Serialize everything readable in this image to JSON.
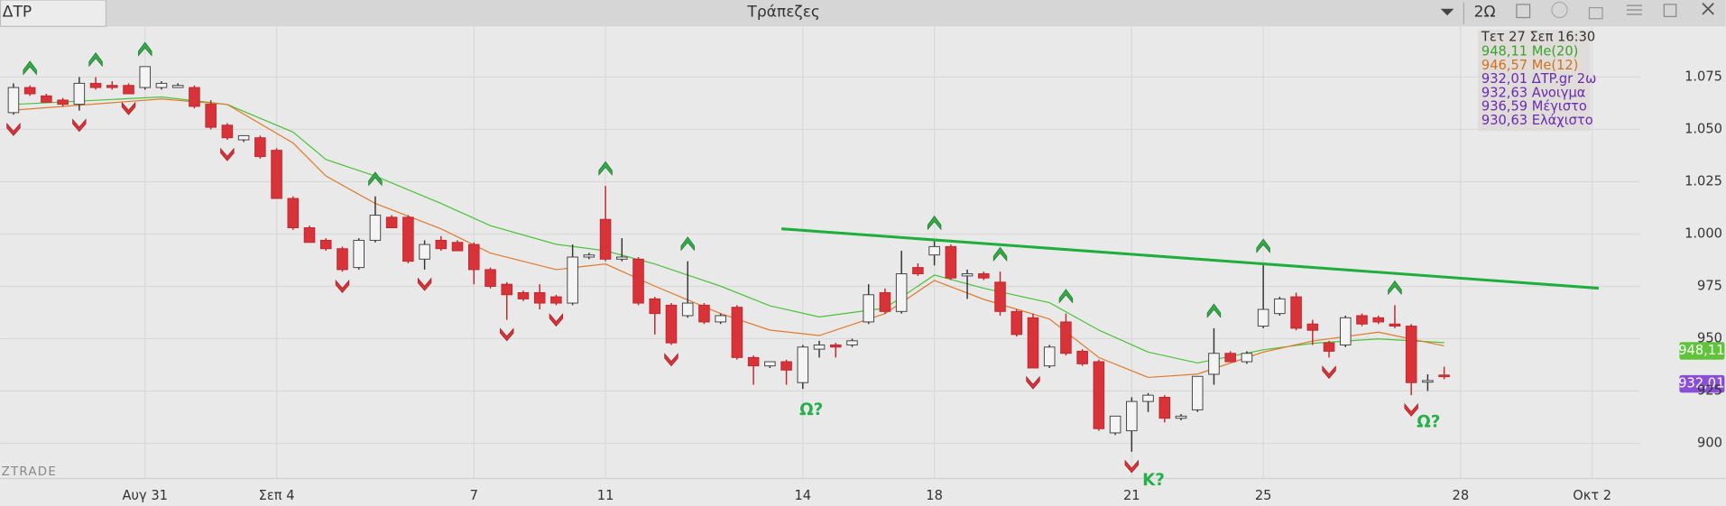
{
  "toolbar": {
    "symbol": "ΔΤΡ",
    "title": "Τράπεζες",
    "interval": "2Ω"
  },
  "watermark": "ZTRADE",
  "info_box": {
    "date": "Τετ 27 Σεπ 16:30",
    "ma20": "948,11 Me(20)",
    "ma12": "946,57 Me(12)",
    "last": "932,01 ΔΤP.gr 2ω",
    "open": "932,63 Ανοιγμα",
    "high": "936,59 Μέγιστο",
    "low": "930,63 Ελάχιστο"
  },
  "price_badges": {
    "ma20": "948,11",
    "last": "932,01"
  },
  "annotations": [
    "Ω?",
    "Κ?",
    "Ω?"
  ],
  "chart_data": {
    "type": "candlestick",
    "up_color": "#f4f4f4",
    "down_color": "#d9333a",
    "xlim": [
      -0.8,
      98.9
    ],
    "ylim": [
      883.2,
      1099.2
    ],
    "xticks": [
      {
        "value": 8,
        "label": "Αυγ 31"
      },
      {
        "value": 16,
        "label": "Σεπ 4"
      },
      {
        "value": 28,
        "label": "7"
      },
      {
        "value": 36,
        "label": "11"
      },
      {
        "value": 48,
        "label": "14"
      },
      {
        "value": 56,
        "label": "18"
      },
      {
        "value": 68,
        "label": "21"
      },
      {
        "value": 76,
        "label": "25"
      },
      {
        "value": 88,
        "label": "28"
      },
      {
        "value": 96,
        "label": "Οκτ 2"
      }
    ],
    "yticks": [
      900,
      925,
      950,
      975,
      {
        "value": 1000,
        "label": "1.000"
      },
      {
        "value": 1025,
        "label": "1.025"
      },
      {
        "value": 1050,
        "label": "1.050"
      },
      {
        "value": 1075,
        "label": "1.075"
      }
    ],
    "grid": true,
    "open": [
      1058,
      1070,
      1066,
      1064,
      1062,
      1072,
      1071,
      1071,
      1070,
      1070,
      1070,
      1070,
      1062,
      1052,
      1045,
      1046,
      1040,
      1017,
      1003,
      997,
      993,
      984,
      997,
      1008,
      1008,
      988,
      997,
      996,
      995,
      983,
      976,
      972,
      972,
      970,
      967,
      989,
      1007,
      988,
      988,
      969,
      966,
      961,
      966,
      958,
      965,
      941,
      937,
      939,
      929,
      945,
      947,
      947,
      958,
      972,
      963,
      984,
      990,
      994,
      980,
      981,
      977,
      963,
      960,
      937,
      958,
      944,
      939,
      905,
      906,
      920,
      922,
      912,
      916,
      933,
      943,
      939,
      956,
      962,
      970,
      957,
      948,
      947,
      961,
      960,
      957,
      956,
      930,
      932.63
    ],
    "high": [
      1072,
      1071,
      1067,
      1065,
      1075,
      1075,
      1073,
      1072,
      1080,
      1073,
      1072,
      1071,
      1064,
      1053,
      1047,
      1047,
      1041,
      1018,
      1004,
      998,
      994,
      998,
      1018,
      1009,
      1009,
      997,
      999,
      997,
      996,
      984,
      977,
      973,
      976,
      971,
      995,
      991,
      1023,
      998,
      989,
      970,
      967,
      987,
      967,
      962,
      966,
      942,
      939,
      940,
      947,
      949,
      948,
      950,
      976,
      974,
      992,
      986,
      997,
      995,
      983,
      982,
      982,
      964,
      962,
      947,
      962,
      945,
      940,
      913,
      922,
      924,
      923,
      914,
      932,
      955,
      944,
      944,
      986,
      970,
      972,
      959,
      949,
      961,
      962,
      961,
      966,
      957,
      933,
      936.59
    ],
    "low": [
      1057,
      1066,
      1063,
      1061,
      1059,
      1069,
      1069,
      1067,
      1069,
      1069,
      1070,
      1060,
      1050,
      1045,
      1044,
      1036,
      1017,
      1002,
      996,
      992,
      982,
      983,
      996,
      1003,
      986,
      983,
      992,
      992,
      976,
      974,
      959,
      968,
      964,
      966,
      966,
      988,
      987,
      987,
      966,
      952,
      947,
      960,
      957,
      957,
      940,
      928,
      936,
      928,
      926,
      941,
      941,
      946,
      957,
      962,
      962,
      980,
      985,
      978,
      969,
      978,
      961,
      951,
      936,
      936,
      942,
      937,
      906,
      904,
      896,
      915,
      910,
      911,
      915,
      928,
      939,
      938,
      955,
      961,
      954,
      947,
      941,
      946,
      956,
      957,
      955,
      923,
      925,
      930.63
    ],
    "close": [
      1070,
      1067,
      1063,
      1062,
      1072,
      1070,
      1070,
      1067,
      1080,
      1072,
      1071,
      1061,
      1051,
      1046,
      1047,
      1037,
      1017,
      1003,
      996,
      993,
      983,
      997,
      1009,
      1003,
      987,
      995,
      993,
      992,
      983,
      975,
      971,
      969,
      967,
      967,
      989,
      990,
      988,
      989,
      967,
      962,
      948,
      967,
      958,
      961,
      941,
      937,
      939,
      935,
      946,
      947,
      946,
      949,
      971,
      963,
      981,
      981,
      994,
      979,
      981,
      979,
      963,
      952,
      936,
      946,
      943,
      938,
      907,
      913,
      920,
      923,
      912,
      913,
      932,
      943,
      939,
      943,
      964,
      969,
      955,
      954,
      944,
      960,
      957,
      958,
      956,
      929,
      930,
      932.01
    ],
    "series": [
      {
        "name": "Me(20)",
        "color": "#4cc23a",
        "x": [
          0,
          9,
          13,
          17,
          19,
          22,
          26,
          29,
          33,
          36,
          39,
          43,
          46,
          49,
          53,
          56,
          59,
          63,
          66,
          69,
          72,
          76,
          79,
          83,
          87
        ],
        "values": [
          1061.9,
          1065.5,
          1061.9,
          1048.7,
          1035.6,
          1027.7,
          1014.6,
          1004,
          995.1,
          992,
          985.7,
          975.1,
          965.7,
          960.4,
          964.6,
          980.4,
          974.1,
          967.2,
          954.1,
          943.6,
          938.4,
          944.7,
          947.8,
          949.9,
          948.11
        ]
      },
      {
        "name": "Me(12)",
        "color": "#e07b2c",
        "x": [
          0,
          9,
          13,
          17,
          19,
          22,
          26,
          29,
          33,
          36,
          39,
          43,
          46,
          49,
          53,
          56,
          59,
          63,
          66,
          69,
          72,
          76,
          79,
          83,
          87
        ],
        "values": [
          1059.2,
          1064.5,
          1061.9,
          1043.5,
          1027.7,
          1014.6,
          1002.5,
          990.9,
          983,
          985.7,
          975.1,
          962,
          954.1,
          951.5,
          962,
          977.8,
          968.8,
          959.4,
          941,
          931.5,
          933.1,
          943.6,
          948.9,
          953.1,
          946.57
        ]
      }
    ],
    "trendline": {
      "color": "#1fae3c",
      "x": [
        46.7,
        96.4
      ],
      "values": [
        1002.5,
        974.1
      ]
    },
    "up_signals": [
      1,
      5,
      8,
      22,
      36,
      41,
      56,
      60,
      64,
      73,
      76,
      84
    ],
    "down_signals": [
      0,
      4,
      7,
      13,
      20,
      25,
      30,
      33,
      40,
      62,
      68,
      80,
      85
    ]
  }
}
